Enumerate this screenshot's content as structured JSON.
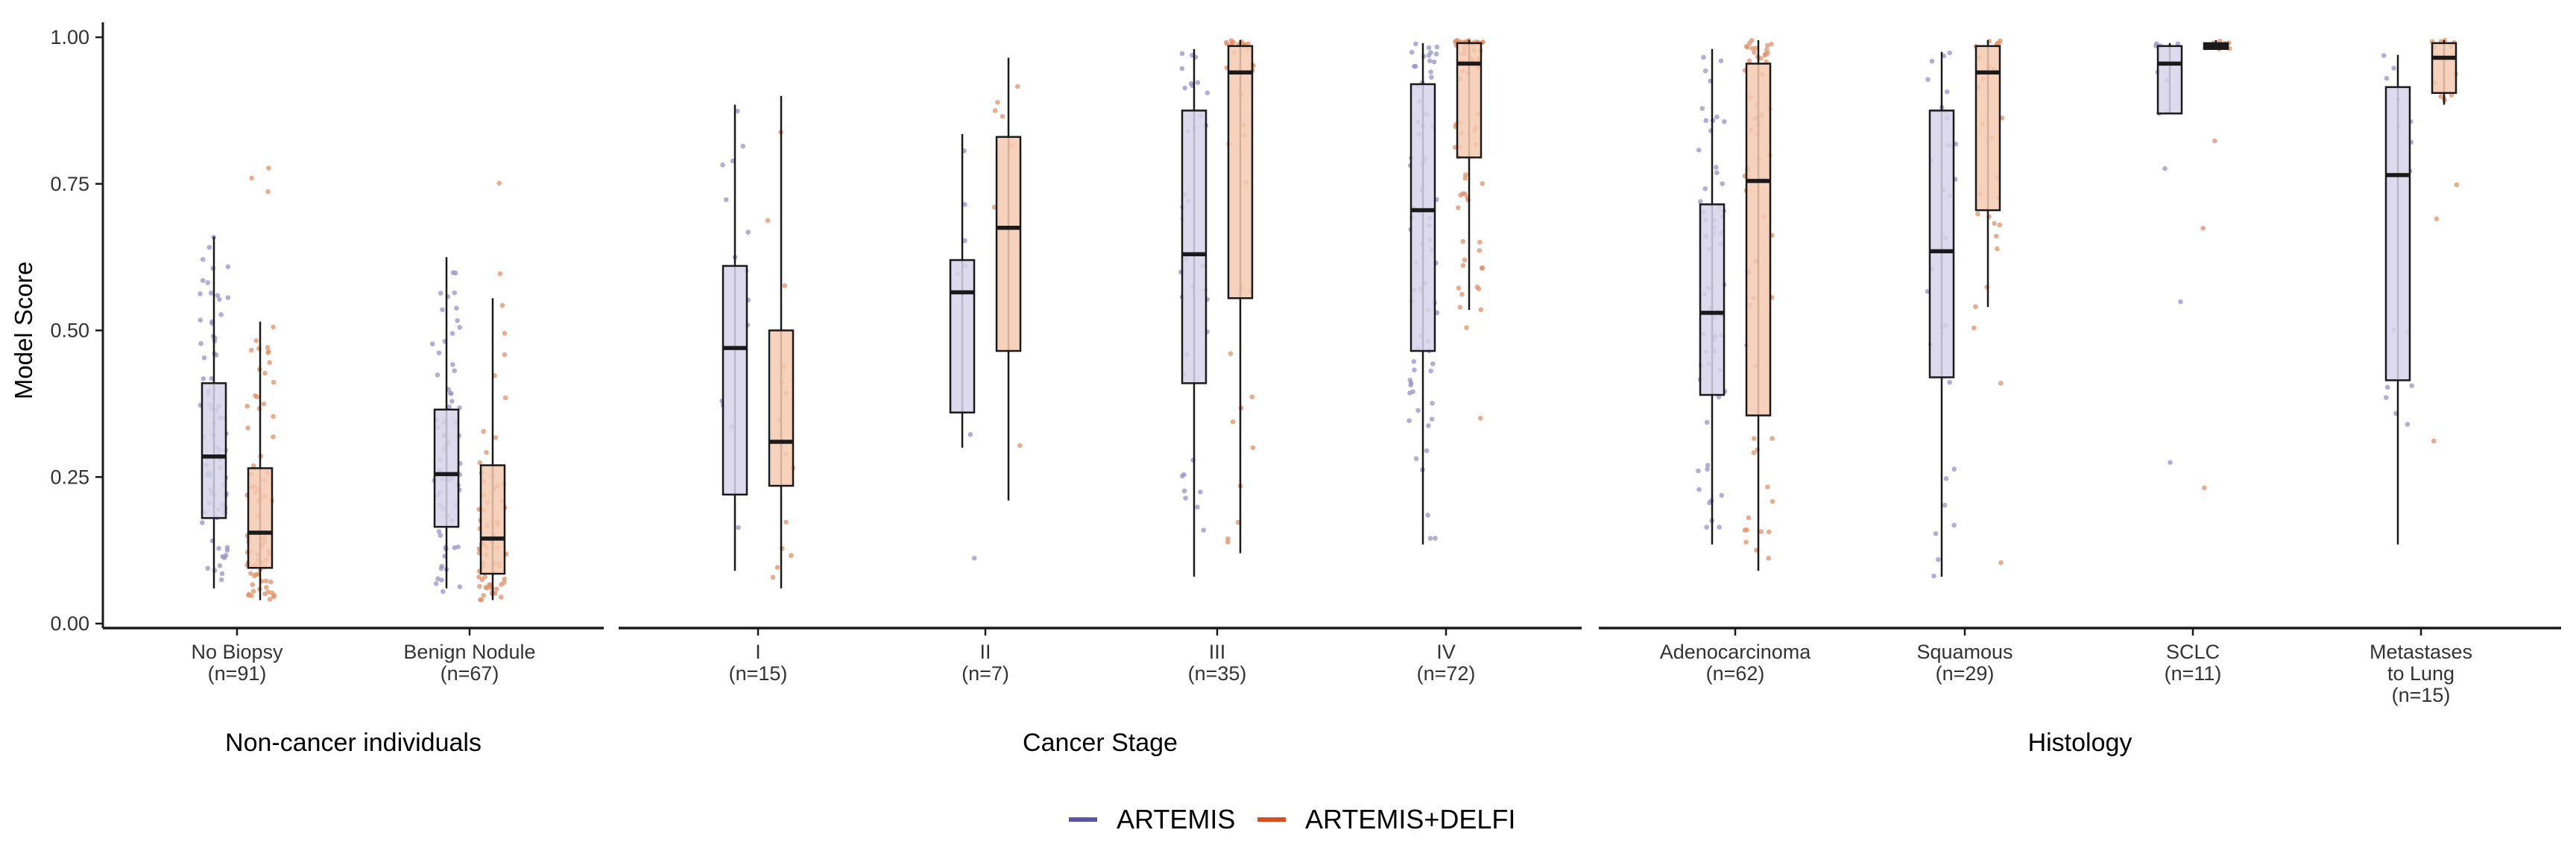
{
  "chart_data": {
    "type": "box",
    "ylabel": "Model Score",
    "ylim": [
      0,
      1
    ],
    "yticks": [
      "0.00",
      "0.25",
      "0.50",
      "0.75",
      "1.00"
    ],
    "grid": false,
    "legend_position": "bottom-center",
    "series": [
      {
        "name": "ARTEMIS",
        "color": "#5b53a6",
        "fill": "#d6d3e9",
        "point": "#9a93c4"
      },
      {
        "name": "ARTEMIS+DELFI",
        "color": "#d5501e",
        "fill": "#f4c9b0",
        "point": "#e0916a"
      }
    ],
    "panels": [
      {
        "title": "Non-cancer individuals",
        "groups": [
          {
            "label": "No Biopsy",
            "n": "(n=91)",
            "boxes": [
              {
                "min": 0.06,
                "q1": 0.18,
                "median": 0.285,
                "q3": 0.41,
                "max": 0.66
              },
              {
                "min": 0.04,
                "q1": 0.095,
                "median": 0.155,
                "q3": 0.265,
                "max": 0.515
              }
            ]
          },
          {
            "label": "Benign Nodule",
            "n": "(n=67)",
            "boxes": [
              {
                "min": 0.06,
                "q1": 0.165,
                "median": 0.255,
                "q3": 0.365,
                "max": 0.625
              },
              {
                "min": 0.04,
                "q1": 0.085,
                "median": 0.145,
                "q3": 0.27,
                "max": 0.555
              }
            ]
          }
        ]
      },
      {
        "title": "Cancer Stage",
        "groups": [
          {
            "label": "I",
            "n": "(n=15)",
            "boxes": [
              {
                "min": 0.09,
                "q1": 0.22,
                "median": 0.47,
                "q3": 0.61,
                "max": 0.885
              },
              {
                "min": 0.06,
                "q1": 0.235,
                "median": 0.31,
                "q3": 0.5,
                "max": 0.9
              }
            ]
          },
          {
            "label": "II",
            "n": "(n=7)",
            "boxes": [
              {
                "min": 0.3,
                "q1": 0.36,
                "median": 0.565,
                "q3": 0.62,
                "max": 0.835
              },
              {
                "min": 0.21,
                "q1": 0.465,
                "median": 0.675,
                "q3": 0.83,
                "max": 0.965
              }
            ]
          },
          {
            "label": "III",
            "n": "(n=35)",
            "boxes": [
              {
                "min": 0.08,
                "q1": 0.41,
                "median": 0.63,
                "q3": 0.875,
                "max": 0.98
              },
              {
                "min": 0.12,
                "q1": 0.555,
                "median": 0.94,
                "q3": 0.985,
                "max": 0.995
              }
            ]
          },
          {
            "label": "IV",
            "n": "(n=72)",
            "boxes": [
              {
                "min": 0.135,
                "q1": 0.465,
                "median": 0.705,
                "q3": 0.92,
                "max": 0.99
              },
              {
                "min": 0.535,
                "q1": 0.795,
                "median": 0.955,
                "q3": 0.99,
                "max": 0.995
              }
            ]
          }
        ]
      },
      {
        "title": "Histology",
        "groups": [
          {
            "label": "Adenocarcinoma",
            "n": "(n=62)",
            "boxes": [
              {
                "min": 0.135,
                "q1": 0.39,
                "median": 0.53,
                "q3": 0.715,
                "max": 0.98
              },
              {
                "min": 0.09,
                "q1": 0.355,
                "median": 0.755,
                "q3": 0.955,
                "max": 0.995
              }
            ]
          },
          {
            "label": "Squamous",
            "n": "(n=29)",
            "boxes": [
              {
                "min": 0.08,
                "q1": 0.42,
                "median": 0.635,
                "q3": 0.875,
                "max": 0.975
              },
              {
                "min": 0.54,
                "q1": 0.705,
                "median": 0.94,
                "q3": 0.985,
                "max": 0.995
              }
            ]
          },
          {
            "label": "SCLC",
            "n": "(n=11)",
            "boxes": [
              {
                "min": 0.87,
                "q1": 0.87,
                "median": 0.955,
                "q3": 0.985,
                "max": 0.99
              },
              {
                "min": 0.98,
                "q1": 0.98,
                "median": 0.985,
                "q3": 0.99,
                "max": 0.995
              }
            ]
          },
          {
            "label": "Metastases\nto Lung",
            "n": "(n=15)",
            "boxes": [
              {
                "min": 0.135,
                "q1": 0.415,
                "median": 0.765,
                "q3": 0.915,
                "max": 0.97
              },
              {
                "min": 0.885,
                "q1": 0.905,
                "median": 0.965,
                "q3": 0.99,
                "max": 0.995
              }
            ]
          }
        ]
      }
    ]
  }
}
